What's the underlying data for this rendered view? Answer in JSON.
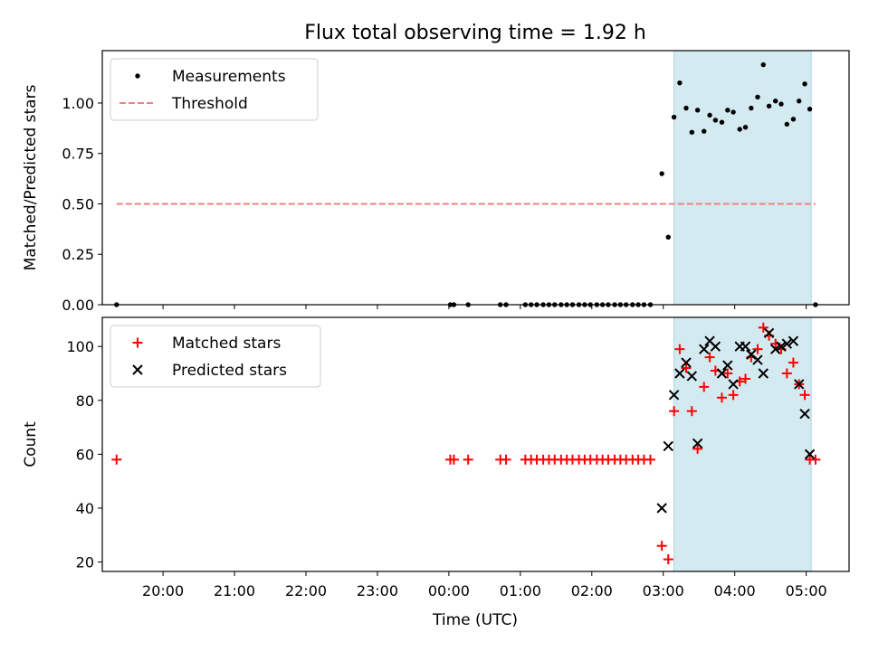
{
  "chart_data": {
    "title": "Flux total observing time = 1.92 h",
    "xlabel": "Time (UTC)",
    "x_axis": {
      "unit": "hours since 00:00 UTC",
      "xlim": [
        -4.85,
        5.6
      ],
      "ticks": [
        -4,
        -3,
        -2,
        -1,
        0,
        1,
        2,
        3,
        4,
        5
      ],
      "tick_labels": [
        "20:00",
        "21:00",
        "22:00",
        "23:00",
        "00:00",
        "01:00",
        "02:00",
        "03:00",
        "04:00",
        "05:00"
      ]
    },
    "observing_window": {
      "start": 3.15,
      "end": 5.07,
      "color": "#d3eaf0"
    },
    "panels": [
      {
        "type": "scatter",
        "ylabel": "Matched/Predicted stars",
        "ylim": [
          0,
          1.26
        ],
        "yticks": [
          0.0,
          0.25,
          0.5,
          0.75,
          1.0
        ],
        "ytick_labels": [
          "0.00",
          "0.25",
          "0.50",
          "0.75",
          "1.00"
        ],
        "threshold": {
          "label": "Threshold",
          "value": 0.5,
          "x_range": [
            -4.65,
            5.13
          ],
          "color": "#f08080"
        },
        "legend": {
          "loc": "upper left",
          "entries": [
            "Measurements",
            "Threshold"
          ]
        },
        "series": [
          {
            "name": "Measurements",
            "marker": "dot",
            "color": "#000000",
            "x": [
              -4.65,
              0.02,
              0.07,
              0.27,
              0.72,
              0.8,
              1.07,
              1.15,
              1.23,
              1.32,
              1.4,
              1.48,
              1.57,
              1.65,
              1.73,
              1.82,
              1.9,
              1.98,
              2.07,
              2.15,
              2.23,
              2.32,
              2.4,
              2.48,
              2.57,
              2.65,
              2.73,
              2.82,
              2.98,
              3.07,
              3.15,
              3.23,
              3.32,
              3.4,
              3.48,
              3.57,
              3.65,
              3.73,
              3.82,
              3.9,
              3.98,
              4.07,
              4.15,
              4.23,
              4.32,
              4.4,
              4.48,
              4.57,
              4.65,
              4.73,
              4.82,
              4.9,
              4.98,
              5.05,
              5.13
            ],
            "y": [
              0,
              0,
              0,
              0,
              0,
              0,
              0,
              0,
              0,
              0,
              0,
              0,
              0,
              0,
              0,
              0,
              0,
              0,
              0,
              0,
              0,
              0,
              0,
              0,
              0,
              0,
              0,
              0,
              0.65,
              0.335,
              0.93,
              1.1,
              0.975,
              0.855,
              0.965,
              0.86,
              0.94,
              0.915,
              0.905,
              0.965,
              0.955,
              0.87,
              0.88,
              0.975,
              1.03,
              1.19,
              0.985,
              1.01,
              0.995,
              0.895,
              0.92,
              1.01,
              1.095,
              0.97,
              0
            ]
          }
        ]
      },
      {
        "type": "scatter",
        "ylabel": "Count",
        "ylim": [
          16.5,
          110.8
        ],
        "yticks": [
          20,
          40,
          60,
          80,
          100
        ],
        "ytick_labels": [
          "20",
          "40",
          "60",
          "80",
          "100"
        ],
        "legend": {
          "loc": "upper left",
          "entries": [
            "Matched stars",
            "Predicted stars"
          ]
        },
        "series": [
          {
            "name": "Matched stars",
            "marker": "plus",
            "color": "#ff0000",
            "x": [
              -4.65,
              0.02,
              0.07,
              0.27,
              0.72,
              0.8,
              1.07,
              1.15,
              1.23,
              1.32,
              1.4,
              1.48,
              1.57,
              1.65,
              1.73,
              1.82,
              1.9,
              1.98,
              2.07,
              2.15,
              2.23,
              2.32,
              2.4,
              2.48,
              2.57,
              2.65,
              2.73,
              2.82,
              2.98,
              3.07,
              3.15,
              3.23,
              3.32,
              3.4,
              3.48,
              3.57,
              3.65,
              3.73,
              3.82,
              3.9,
              3.98,
              4.07,
              4.15,
              4.23,
              4.32,
              4.4,
              4.48,
              4.57,
              4.65,
              4.73,
              4.82,
              4.9,
              4.98,
              5.05,
              5.13
            ],
            "y": [
              58,
              58,
              58,
              58,
              58,
              58,
              58,
              58,
              58,
              58,
              58,
              58,
              58,
              58,
              58,
              58,
              58,
              58,
              58,
              58,
              58,
              58,
              58,
              58,
              58,
              58,
              58,
              58,
              26,
              21,
              76,
              99,
              92,
              76,
              62,
              85,
              96,
              91,
              81,
              90,
              82,
              87,
              88,
              96,
              99,
              107,
              104,
              101,
              99,
              90,
              94,
              86,
              82,
              58,
              58
            ]
          },
          {
            "name": "Predicted stars",
            "marker": "x",
            "color": "#000000",
            "x": [
              2.98,
              3.07,
              3.15,
              3.23,
              3.32,
              3.4,
              3.48,
              3.57,
              3.65,
              3.73,
              3.82,
              3.9,
              3.98,
              4.07,
              4.15,
              4.23,
              4.32,
              4.4,
              4.48,
              4.57,
              4.65,
              4.73,
              4.82,
              4.9,
              4.98,
              5.05
            ],
            "y": [
              40,
              63,
              82,
              90,
              94,
              89,
              64,
              99,
              102,
              100,
              90,
              93,
              86,
              100,
              100,
              97,
              95,
              90,
              105,
              99,
              100,
              101,
              102,
              86,
              75,
              60
            ]
          }
        ]
      }
    ]
  }
}
